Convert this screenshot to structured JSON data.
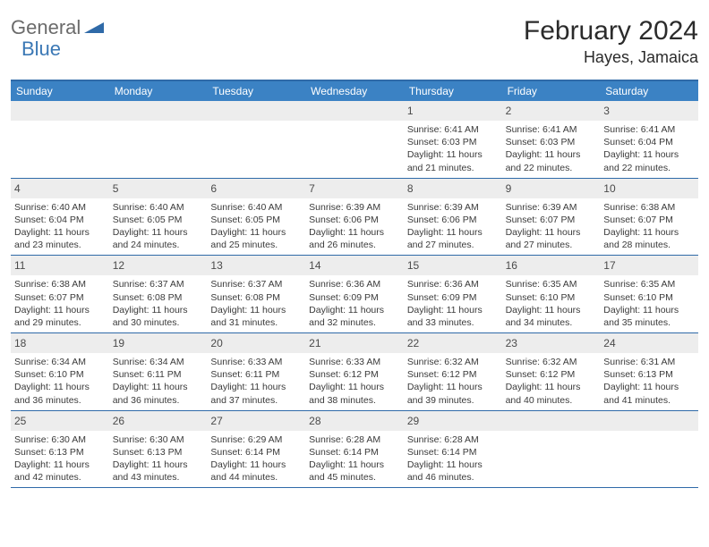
{
  "logo": {
    "text1": "General",
    "text2": "Blue"
  },
  "title": "February 2024",
  "location": "Hayes, Jamaica",
  "colors": {
    "header_bg": "#3b82c4",
    "border": "#2f6aa8",
    "daynum_bg": "#ededed",
    "logo_gray": "#6b6b6b",
    "logo_blue": "#3b78b5"
  },
  "day_headers": [
    "Sunday",
    "Monday",
    "Tuesday",
    "Wednesday",
    "Thursday",
    "Friday",
    "Saturday"
  ],
  "weeks": [
    [
      {
        "num": "",
        "sunrise": "",
        "sunset": "",
        "daylight": ""
      },
      {
        "num": "",
        "sunrise": "",
        "sunset": "",
        "daylight": ""
      },
      {
        "num": "",
        "sunrise": "",
        "sunset": "",
        "daylight": ""
      },
      {
        "num": "",
        "sunrise": "",
        "sunset": "",
        "daylight": ""
      },
      {
        "num": "1",
        "sunrise": "Sunrise: 6:41 AM",
        "sunset": "Sunset: 6:03 PM",
        "daylight": "Daylight: 11 hours and 21 minutes."
      },
      {
        "num": "2",
        "sunrise": "Sunrise: 6:41 AM",
        "sunset": "Sunset: 6:03 PM",
        "daylight": "Daylight: 11 hours and 22 minutes."
      },
      {
        "num": "3",
        "sunrise": "Sunrise: 6:41 AM",
        "sunset": "Sunset: 6:04 PM",
        "daylight": "Daylight: 11 hours and 22 minutes."
      }
    ],
    [
      {
        "num": "4",
        "sunrise": "Sunrise: 6:40 AM",
        "sunset": "Sunset: 6:04 PM",
        "daylight": "Daylight: 11 hours and 23 minutes."
      },
      {
        "num": "5",
        "sunrise": "Sunrise: 6:40 AM",
        "sunset": "Sunset: 6:05 PM",
        "daylight": "Daylight: 11 hours and 24 minutes."
      },
      {
        "num": "6",
        "sunrise": "Sunrise: 6:40 AM",
        "sunset": "Sunset: 6:05 PM",
        "daylight": "Daylight: 11 hours and 25 minutes."
      },
      {
        "num": "7",
        "sunrise": "Sunrise: 6:39 AM",
        "sunset": "Sunset: 6:06 PM",
        "daylight": "Daylight: 11 hours and 26 minutes."
      },
      {
        "num": "8",
        "sunrise": "Sunrise: 6:39 AM",
        "sunset": "Sunset: 6:06 PM",
        "daylight": "Daylight: 11 hours and 27 minutes."
      },
      {
        "num": "9",
        "sunrise": "Sunrise: 6:39 AM",
        "sunset": "Sunset: 6:07 PM",
        "daylight": "Daylight: 11 hours and 27 minutes."
      },
      {
        "num": "10",
        "sunrise": "Sunrise: 6:38 AM",
        "sunset": "Sunset: 6:07 PM",
        "daylight": "Daylight: 11 hours and 28 minutes."
      }
    ],
    [
      {
        "num": "11",
        "sunrise": "Sunrise: 6:38 AM",
        "sunset": "Sunset: 6:07 PM",
        "daylight": "Daylight: 11 hours and 29 minutes."
      },
      {
        "num": "12",
        "sunrise": "Sunrise: 6:37 AM",
        "sunset": "Sunset: 6:08 PM",
        "daylight": "Daylight: 11 hours and 30 minutes."
      },
      {
        "num": "13",
        "sunrise": "Sunrise: 6:37 AM",
        "sunset": "Sunset: 6:08 PM",
        "daylight": "Daylight: 11 hours and 31 minutes."
      },
      {
        "num": "14",
        "sunrise": "Sunrise: 6:36 AM",
        "sunset": "Sunset: 6:09 PM",
        "daylight": "Daylight: 11 hours and 32 minutes."
      },
      {
        "num": "15",
        "sunrise": "Sunrise: 6:36 AM",
        "sunset": "Sunset: 6:09 PM",
        "daylight": "Daylight: 11 hours and 33 minutes."
      },
      {
        "num": "16",
        "sunrise": "Sunrise: 6:35 AM",
        "sunset": "Sunset: 6:10 PM",
        "daylight": "Daylight: 11 hours and 34 minutes."
      },
      {
        "num": "17",
        "sunrise": "Sunrise: 6:35 AM",
        "sunset": "Sunset: 6:10 PM",
        "daylight": "Daylight: 11 hours and 35 minutes."
      }
    ],
    [
      {
        "num": "18",
        "sunrise": "Sunrise: 6:34 AM",
        "sunset": "Sunset: 6:10 PM",
        "daylight": "Daylight: 11 hours and 36 minutes."
      },
      {
        "num": "19",
        "sunrise": "Sunrise: 6:34 AM",
        "sunset": "Sunset: 6:11 PM",
        "daylight": "Daylight: 11 hours and 36 minutes."
      },
      {
        "num": "20",
        "sunrise": "Sunrise: 6:33 AM",
        "sunset": "Sunset: 6:11 PM",
        "daylight": "Daylight: 11 hours and 37 minutes."
      },
      {
        "num": "21",
        "sunrise": "Sunrise: 6:33 AM",
        "sunset": "Sunset: 6:12 PM",
        "daylight": "Daylight: 11 hours and 38 minutes."
      },
      {
        "num": "22",
        "sunrise": "Sunrise: 6:32 AM",
        "sunset": "Sunset: 6:12 PM",
        "daylight": "Daylight: 11 hours and 39 minutes."
      },
      {
        "num": "23",
        "sunrise": "Sunrise: 6:32 AM",
        "sunset": "Sunset: 6:12 PM",
        "daylight": "Daylight: 11 hours and 40 minutes."
      },
      {
        "num": "24",
        "sunrise": "Sunrise: 6:31 AM",
        "sunset": "Sunset: 6:13 PM",
        "daylight": "Daylight: 11 hours and 41 minutes."
      }
    ],
    [
      {
        "num": "25",
        "sunrise": "Sunrise: 6:30 AM",
        "sunset": "Sunset: 6:13 PM",
        "daylight": "Daylight: 11 hours and 42 minutes."
      },
      {
        "num": "26",
        "sunrise": "Sunrise: 6:30 AM",
        "sunset": "Sunset: 6:13 PM",
        "daylight": "Daylight: 11 hours and 43 minutes."
      },
      {
        "num": "27",
        "sunrise": "Sunrise: 6:29 AM",
        "sunset": "Sunset: 6:14 PM",
        "daylight": "Daylight: 11 hours and 44 minutes."
      },
      {
        "num": "28",
        "sunrise": "Sunrise: 6:28 AM",
        "sunset": "Sunset: 6:14 PM",
        "daylight": "Daylight: 11 hours and 45 minutes."
      },
      {
        "num": "29",
        "sunrise": "Sunrise: 6:28 AM",
        "sunset": "Sunset: 6:14 PM",
        "daylight": "Daylight: 11 hours and 46 minutes."
      },
      {
        "num": "",
        "sunrise": "",
        "sunset": "",
        "daylight": ""
      },
      {
        "num": "",
        "sunrise": "",
        "sunset": "",
        "daylight": ""
      }
    ]
  ]
}
